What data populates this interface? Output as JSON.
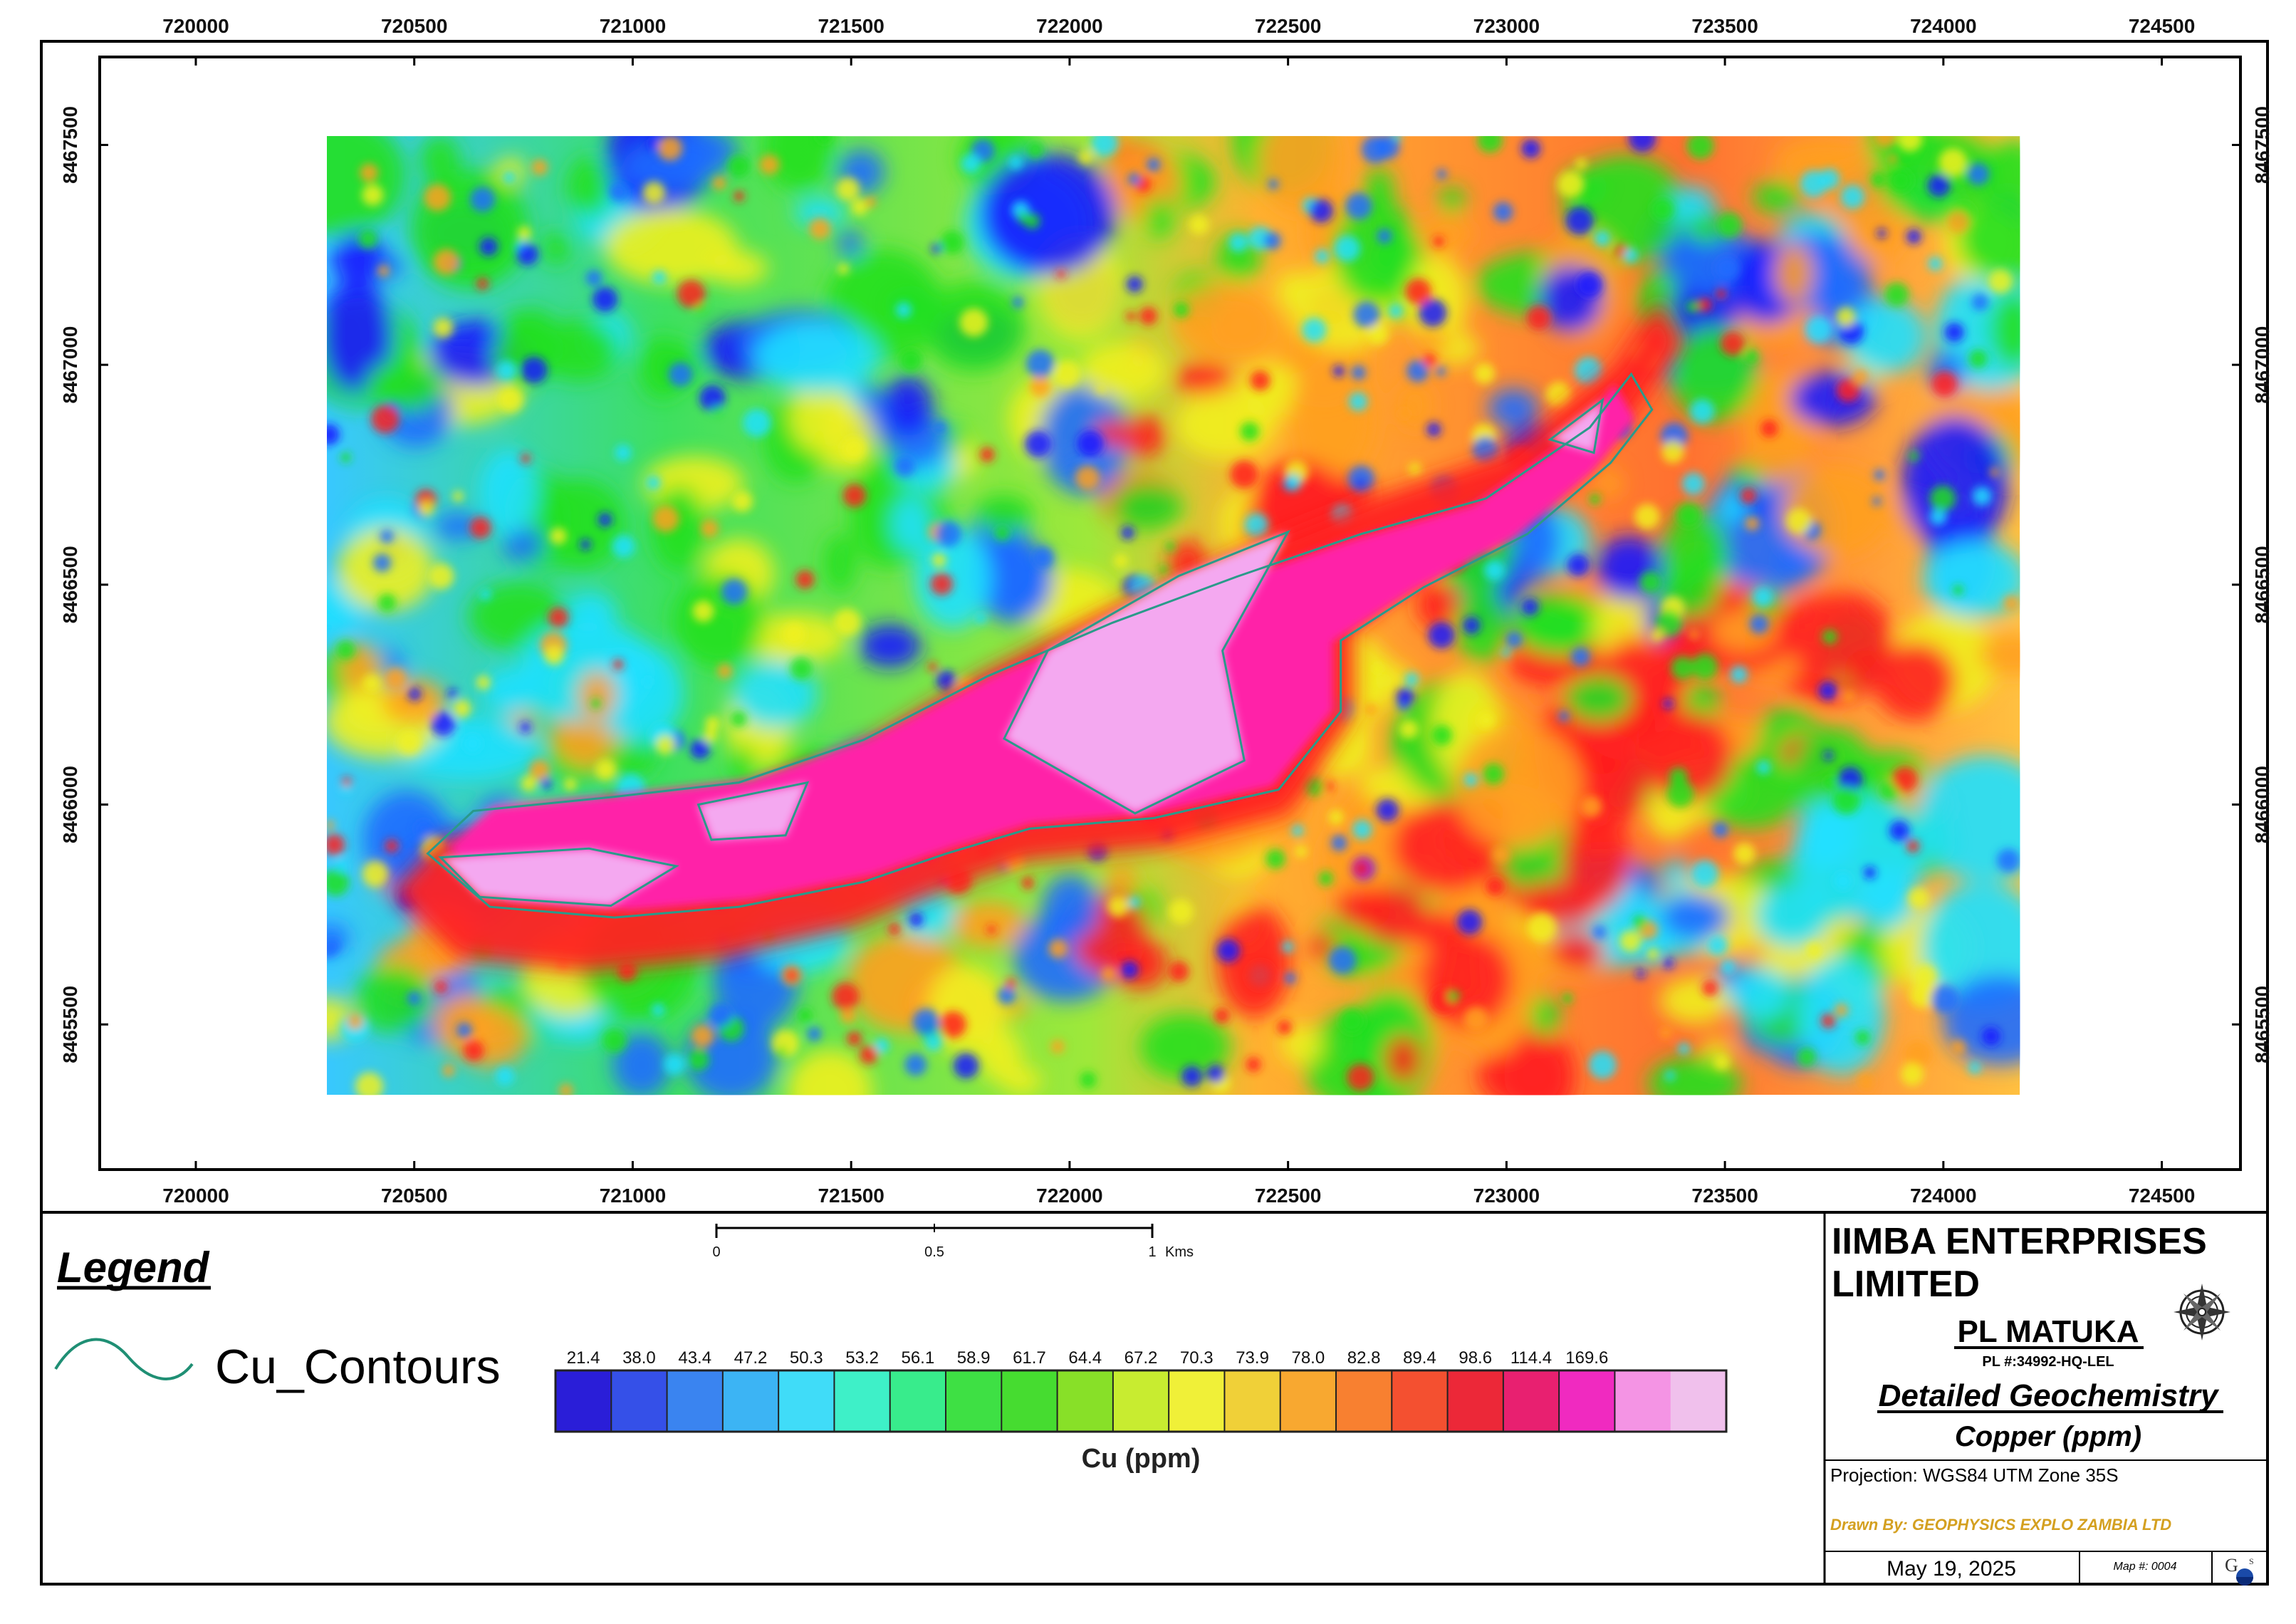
{
  "map": {
    "x_ticks_top": [
      "720000",
      "720500",
      "721000",
      "721500",
      "722000",
      "722500",
      "723000",
      "723500",
      "724000",
      "724500"
    ],
    "x_ticks_bottom": [
      "720000",
      "720500",
      "721000",
      "721500",
      "722000",
      "722500",
      "723000",
      "723500",
      "724000",
      "724500"
    ],
    "y_ticks": [
      "8467500",
      "8467000",
      "8466500",
      "8466000",
      "8465500"
    ],
    "easting_range": [
      719780,
      724680
    ],
    "northing_range": [
      8465170,
      8467700
    ],
    "grid_extent": {
      "easting": [
        720300,
        724175
      ],
      "northing": [
        8465340,
        8467520
      ]
    },
    "colors": {
      "low": "#1a1aff",
      "blue": "#1e6cff",
      "cyan": "#20e0ff",
      "green": "#22e020",
      "yellow": "#f0f020",
      "orange": "#ffa020",
      "red": "#ff2020",
      "magenta": "#ff20a8",
      "light_pink": "#f4a8f0",
      "contour": "#2a9a8a"
    }
  },
  "legend": {
    "title": "Legend",
    "item_label": "Cu_Contours",
    "icon": "contour-line-icon"
  },
  "scalebar": {
    "labels": [
      "0",
      "0.5",
      "1"
    ],
    "unit": "Kms"
  },
  "colorbar": {
    "title": "Cu (ppm)",
    "ticks": [
      "21.4",
      "38.0",
      "43.4",
      "47.2",
      "50.3",
      "53.2",
      "56.1",
      "58.9",
      "61.7",
      "64.4",
      "67.2",
      "70.3",
      "73.9",
      "78.0",
      "82.8",
      "89.4",
      "98.6",
      "114.4",
      "169.6"
    ],
    "colors": [
      "#2a1ed8",
      "#3550e8",
      "#3a84f0",
      "#3cb4f4",
      "#40dcf8",
      "#3ef0c8",
      "#38ec8c",
      "#3ee044",
      "#46dc30",
      "#88e028",
      "#c8ec30",
      "#f0f038",
      "#f0d038",
      "#f8a830",
      "#f88030",
      "#f45030",
      "#ec2838",
      "#e82070",
      "#f02ac0",
      "#f494e4",
      "#f0c0ec"
    ]
  },
  "title_block": {
    "company_line1": "IIMBA ENTERPRISES",
    "company_line2": "LIMITED",
    "license": "PL MATUKA",
    "license_number": "PL #:34992-HQ-LEL",
    "map_title": "Detailed Geochemistry",
    "map_subtitle": "Copper (ppm)",
    "projection": "Projection: WGS84 UTM Zone 35S",
    "drawn_by": "Drawn By: GEOPHYSICS EXPLO ZAMBIA LTD",
    "date": "May 19, 2025",
    "map_number": "Map #: 0004",
    "compass_icon": "compass-rose-icon",
    "logo_icon": "company-logo-icon"
  }
}
